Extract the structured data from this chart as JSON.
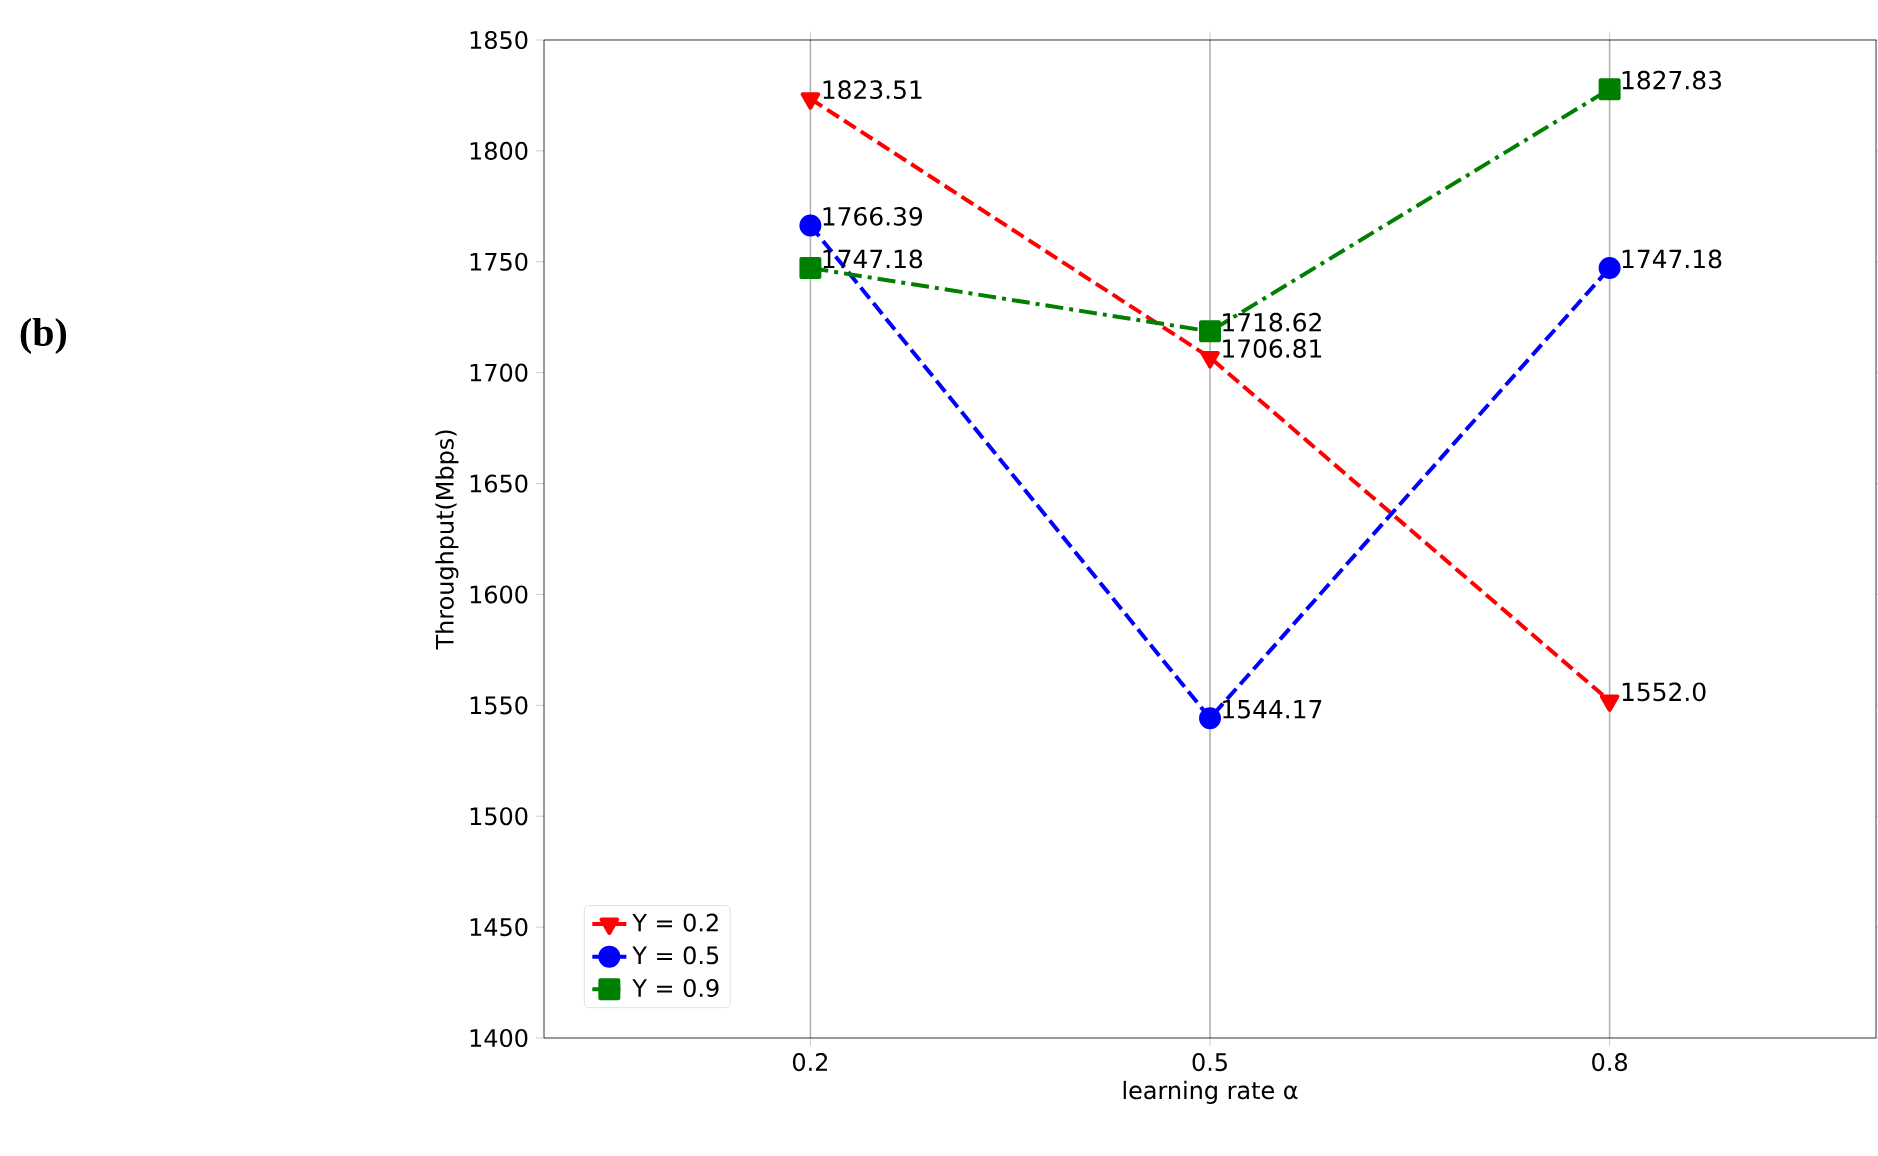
{
  "chart_data": {
    "type": "line",
    "xlabel": "learning rate α",
    "ylabel": "Throughput(Mbps)",
    "x": [
      0.2,
      0.5,
      0.8
    ],
    "xlim": [
      0,
      1
    ],
    "xticks": [
      0.2,
      0.5,
      0.8
    ],
    "ylim": [
      1400,
      1850
    ],
    "yticks": [
      1400,
      1450,
      1500,
      1550,
      1600,
      1650,
      1700,
      1750,
      1800,
      1850
    ],
    "grid": "x",
    "legend": "bottom left",
    "annotations": [
      "**(b)**"
    ],
    "series": [
      {
        "name": "Υ = 0.2",
        "color": "#ff0000",
        "values": [
          1823.51,
          1706.81,
          1552.0
        ],
        "value_labels": [
          "1823.51",
          "1706.81",
          "1552.0"
        ],
        "marker": "triangle_down",
        "line_style": "dashed"
      },
      {
        "name": "Υ = 0.5",
        "color": "#0000ff",
        "values": [
          1766.39,
          1544.17,
          1747.18
        ],
        "value_labels": [
          "1766.39",
          "1544.17",
          "1747.18"
        ],
        "marker": "circle",
        "line_style": "dashed"
      },
      {
        "name": "Υ = 0.9",
        "color": "#008000",
        "values": [
          1747.18,
          1718.62,
          1827.83
        ],
        "value_labels": [
          "1747.18",
          "1718.62",
          "1827.83"
        ],
        "marker": "square",
        "line_style": "dashdot"
      }
    ]
  }
}
